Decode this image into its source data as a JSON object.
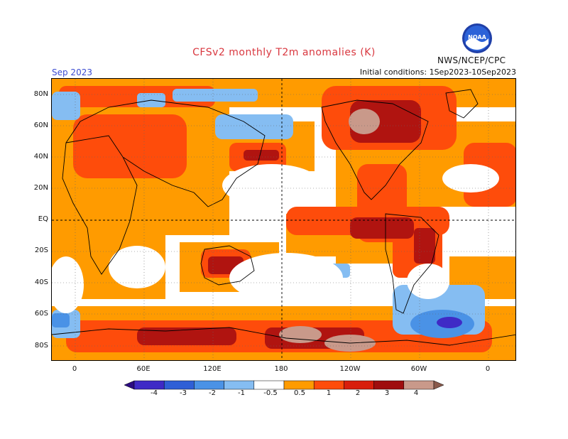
{
  "header": {
    "title": "CFSv2 monthly T2m anomalies (K)",
    "period": "Sep 2023",
    "initial_conditions": "Initial conditions: 1Sep2023-10Sep2023",
    "agency": "NWS/NCEP/CPC",
    "logo_text": "NOAA"
  },
  "map": {
    "projection": "equirectangular",
    "center_longitude": 180,
    "latitude_labels": [
      "80N",
      "60N",
      "40N",
      "20N",
      "EQ",
      "20S",
      "40S",
      "60S",
      "80S"
    ],
    "longitude_labels": [
      "0",
      "60E",
      "120E",
      "180",
      "120W",
      "60W",
      "0"
    ],
    "field": "2 m temperature anomaly",
    "units": "K"
  },
  "colorbar": {
    "labels": [
      "-4",
      "-3",
      "-2",
      "-1",
      "-0.5",
      "0.5",
      "1",
      "2",
      "3",
      "4"
    ],
    "colors": [
      "#2c0c82",
      "#3f2ac6",
      "#2f5fd6",
      "#4a92e6",
      "#85bdf2",
      "#ffffff",
      "#ff9b00",
      "#fe4c0b",
      "#d81e0c",
      "#9f0d0e",
      "#c9998a",
      "#8a5a4c"
    ]
  }
}
